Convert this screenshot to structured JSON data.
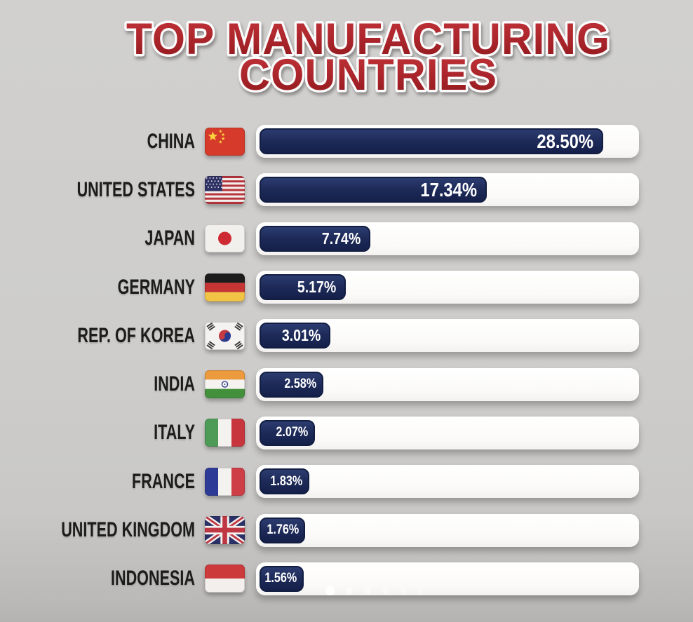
{
  "title": {
    "line1": "TOP MANUFACTURING",
    "line2": "COUNTRIES"
  },
  "colors": {
    "title_red_top": "#c23439",
    "title_red_bottom": "#8c171b",
    "bar_navy": "#1d2a58",
    "track_white": "#ffffff",
    "background_gray": "#cecdcb",
    "label_black": "#1c1c1c"
  },
  "chart_data": {
    "type": "bar",
    "orientation": "horizontal",
    "title": "TOP MANUFACTURING COUNTRIES",
    "value_unit": "percent",
    "value_range": [
      0,
      28.5
    ],
    "grid": false,
    "legend": false,
    "rows": [
      {
        "country": "CHINA",
        "flag": "china",
        "value": 28.5,
        "display": "28.50%",
        "bar_pct": 91.5
      },
      {
        "country": "UNITED STATES",
        "flag": "us",
        "value": 17.34,
        "display": "17.34%",
        "bar_pct": 60.5
      },
      {
        "country": "JAPAN",
        "flag": "japan",
        "value": 7.74,
        "display": "7.74%",
        "bar_pct": 29.5
      },
      {
        "country": "GERMANY",
        "flag": "germany",
        "value": 5.17,
        "display": "5.17%",
        "bar_pct": 23.0
      },
      {
        "country": "REP. OF KOREA",
        "flag": "south-korea",
        "value": 3.01,
        "display": "3.01%",
        "bar_pct": 18.8
      },
      {
        "country": "INDIA",
        "flag": "india",
        "value": 2.58,
        "display": "2.58%",
        "bar_pct": 16.9
      },
      {
        "country": "ITALY",
        "flag": "italy",
        "value": 2.07,
        "display": "2.07%",
        "bar_pct": 14.7
      },
      {
        "country": "FRANCE",
        "flag": "france",
        "value": 1.83,
        "display": "1.83%",
        "bar_pct": 13.2
      },
      {
        "country": "UNITED KINGDOM",
        "flag": "uk",
        "value": 1.76,
        "display": "1.76%",
        "bar_pct": 12.2
      },
      {
        "country": "INDONESIA",
        "flag": "indonesia",
        "value": 1.56,
        "display": "1.56%",
        "bar_pct": 11.8
      }
    ]
  },
  "carousel": {
    "dot_count": 6,
    "active_dot": 1
  }
}
